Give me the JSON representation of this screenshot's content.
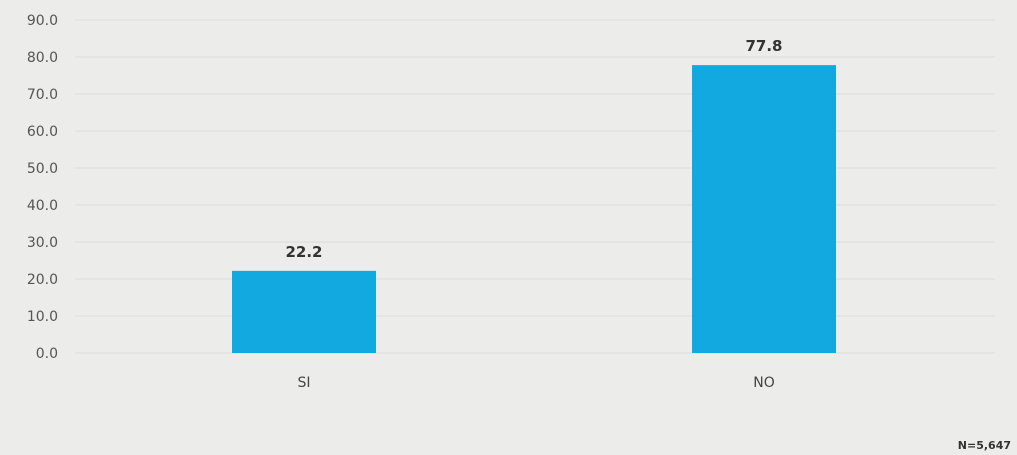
{
  "chart_data": {
    "type": "bar",
    "categories": [
      "SI",
      "NO"
    ],
    "values": [
      22.2,
      77.8
    ],
    "value_labels": [
      "22.2",
      "77.8"
    ],
    "ylim": [
      0,
      90
    ],
    "y_ticks": [
      "0.0",
      "10.0",
      "20.0",
      "30.0",
      "40.0",
      "50.0",
      "60.0",
      "70.0",
      "80.0",
      "90.0"
    ],
    "grid": true,
    "bar_color": "#12a8e0",
    "note": "N=5,647"
  }
}
